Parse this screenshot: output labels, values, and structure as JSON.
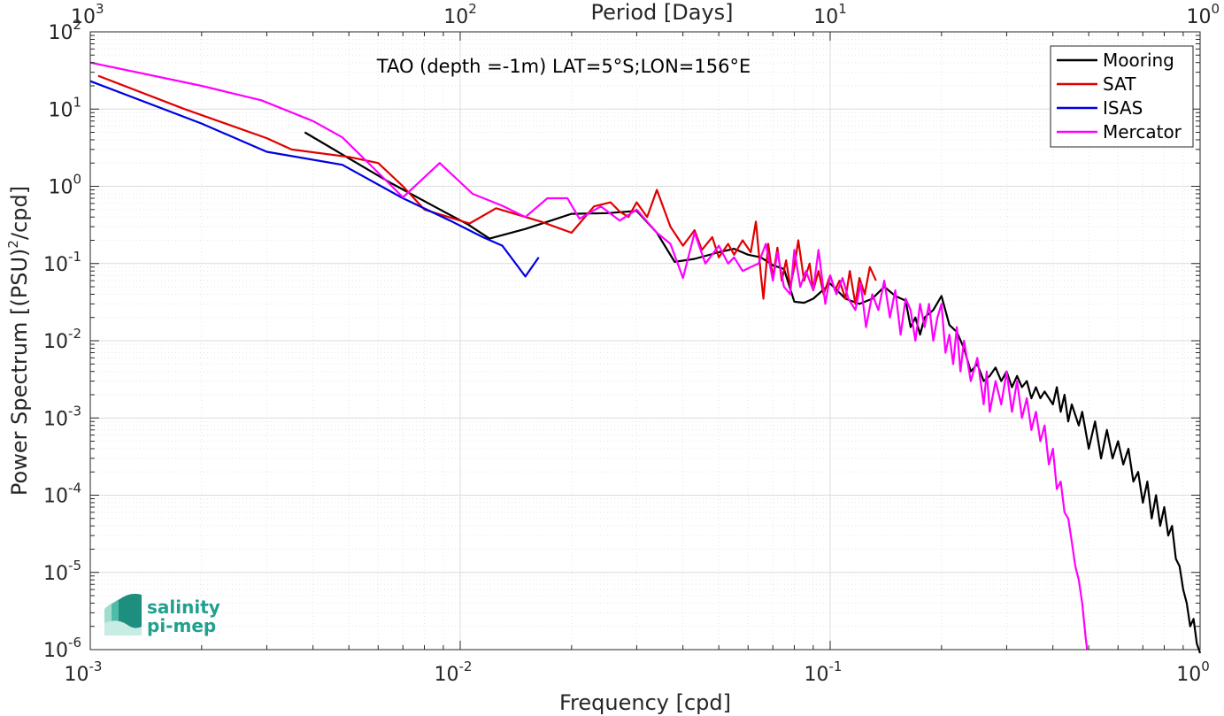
{
  "chart_data": {
    "type": "line",
    "title": "",
    "annotation": "TAO (depth =-1m) LAT=5°S;LON=156°E",
    "xlabel": "Frequency [cpd]",
    "ylabel_main": "Power Spectrum [(PSU)",
    "ylabel_sup": "2",
    "ylabel_tail": "/cpd]",
    "x2label": "Period [Days]",
    "xscale": "log",
    "yscale": "log",
    "xlim": [
      0.001,
      1
    ],
    "ylim": [
      1e-06,
      100
    ],
    "grid": true,
    "legend_position": "top-right",
    "x_ticks": [
      {
        "value": 0.001,
        "base": "10",
        "exp": "-3"
      },
      {
        "value": 0.01,
        "base": "10",
        "exp": "-2"
      },
      {
        "value": 0.1,
        "base": "10",
        "exp": "-1"
      },
      {
        "value": 1,
        "base": "10",
        "exp": "0"
      }
    ],
    "y_ticks": [
      {
        "value": 100,
        "base": "10",
        "exp": "2"
      },
      {
        "value": 10,
        "base": "10",
        "exp": "1"
      },
      {
        "value": 1,
        "base": "10",
        "exp": "0"
      },
      {
        "value": 0.1,
        "base": "10",
        "exp": "-1"
      },
      {
        "value": 0.01,
        "base": "10",
        "exp": "-2"
      },
      {
        "value": 0.001,
        "base": "10",
        "exp": "-3"
      },
      {
        "value": 0.0001,
        "base": "10",
        "exp": "-4"
      },
      {
        "value": 1e-05,
        "base": "10",
        "exp": "-5"
      },
      {
        "value": 1e-06,
        "base": "10",
        "exp": "-6"
      }
    ],
    "x2_ticks": [
      {
        "freq": 0.001,
        "base": "10",
        "exp": "3"
      },
      {
        "freq": 0.01,
        "base": "10",
        "exp": "2"
      },
      {
        "freq": 0.1,
        "base": "10",
        "exp": "1"
      },
      {
        "freq": 1,
        "base": "10",
        "exp": "0"
      }
    ],
    "series": [
      {
        "name": "Mooring",
        "color": "#000000",
        "points": [
          [
            0.0038,
            5.0
          ],
          [
            0.005,
            2.3
          ],
          [
            0.0065,
            1.1
          ],
          [
            0.0085,
            0.55
          ],
          [
            0.0105,
            0.32
          ],
          [
            0.012,
            0.21
          ],
          [
            0.015,
            0.28
          ],
          [
            0.02,
            0.44
          ],
          [
            0.025,
            0.45
          ],
          [
            0.03,
            0.48
          ],
          [
            0.034,
            0.25
          ],
          [
            0.038,
            0.105
          ],
          [
            0.043,
            0.115
          ],
          [
            0.05,
            0.14
          ],
          [
            0.055,
            0.155
          ],
          [
            0.06,
            0.13
          ],
          [
            0.065,
            0.12
          ],
          [
            0.07,
            0.095
          ],
          [
            0.075,
            0.085
          ],
          [
            0.08,
            0.032
          ],
          [
            0.085,
            0.031
          ],
          [
            0.09,
            0.035
          ],
          [
            0.1,
            0.055
          ],
          [
            0.11,
            0.035
          ],
          [
            0.12,
            0.03
          ],
          [
            0.13,
            0.035
          ],
          [
            0.14,
            0.05
          ],
          [
            0.15,
            0.038
          ],
          [
            0.16,
            0.033
          ],
          [
            0.165,
            0.015
          ],
          [
            0.17,
            0.02
          ],
          [
            0.175,
            0.012
          ],
          [
            0.18,
            0.02
          ],
          [
            0.19,
            0.025
          ],
          [
            0.2,
            0.038
          ],
          [
            0.21,
            0.016
          ],
          [
            0.22,
            0.013
          ],
          [
            0.23,
            0.008
          ],
          [
            0.24,
            0.004
          ],
          [
            0.25,
            0.005
          ],
          [
            0.26,
            0.003
          ],
          [
            0.27,
            0.0035
          ],
          [
            0.28,
            0.0045
          ],
          [
            0.29,
            0.003
          ],
          [
            0.3,
            0.004
          ],
          [
            0.31,
            0.0025
          ],
          [
            0.32,
            0.0035
          ],
          [
            0.33,
            0.0025
          ],
          [
            0.34,
            0.003
          ],
          [
            0.35,
            0.0018
          ],
          [
            0.36,
            0.0025
          ],
          [
            0.37,
            0.0018
          ],
          [
            0.38,
            0.0022
          ],
          [
            0.4,
            0.0015
          ],
          [
            0.41,
            0.0025
          ],
          [
            0.42,
            0.0012
          ],
          [
            0.43,
            0.002
          ],
          [
            0.44,
            0.0009
          ],
          [
            0.45,
            0.0015
          ],
          [
            0.47,
            0.0008
          ],
          [
            0.48,
            0.0012
          ],
          [
            0.5,
            0.0004
          ],
          [
            0.52,
            0.0009
          ],
          [
            0.54,
            0.0003
          ],
          [
            0.56,
            0.0007
          ],
          [
            0.58,
            0.0003
          ],
          [
            0.6,
            0.0005
          ],
          [
            0.62,
            0.00025
          ],
          [
            0.64,
            0.0004
          ],
          [
            0.66,
            0.00015
          ],
          [
            0.68,
            0.0002
          ],
          [
            0.7,
            8e-05
          ],
          [
            0.72,
            0.00015
          ],
          [
            0.74,
            5e-05
          ],
          [
            0.76,
            0.0001
          ],
          [
            0.78,
            4e-05
          ],
          [
            0.8,
            7e-05
          ],
          [
            0.82,
            3e-05
          ],
          [
            0.84,
            4e-05
          ],
          [
            0.86,
            1.5e-05
          ],
          [
            0.88,
            1.2e-05
          ],
          [
            0.9,
            6e-06
          ],
          [
            0.92,
            4e-06
          ],
          [
            0.94,
            2e-06
          ],
          [
            0.96,
            2.5e-06
          ],
          [
            0.98,
            1.2e-06
          ],
          [
            1.0,
            9e-07
          ]
        ]
      },
      {
        "name": "SAT",
        "color": "#e00000",
        "points": [
          [
            0.00105,
            27
          ],
          [
            0.0018,
            10
          ],
          [
            0.003,
            4.2
          ],
          [
            0.0035,
            3.0
          ],
          [
            0.005,
            2.4
          ],
          [
            0.006,
            2.0
          ],
          [
            0.007,
            1.0
          ],
          [
            0.008,
            0.5
          ],
          [
            0.0106,
            0.33
          ],
          [
            0.0125,
            0.52
          ],
          [
            0.0165,
            0.35
          ],
          [
            0.02,
            0.25
          ],
          [
            0.023,
            0.55
          ],
          [
            0.0255,
            0.62
          ],
          [
            0.027,
            0.47
          ],
          [
            0.0285,
            0.4
          ],
          [
            0.03,
            0.62
          ],
          [
            0.032,
            0.4
          ],
          [
            0.034,
            0.9
          ],
          [
            0.037,
            0.3
          ],
          [
            0.04,
            0.17
          ],
          [
            0.043,
            0.27
          ],
          [
            0.045,
            0.15
          ],
          [
            0.048,
            0.22
          ],
          [
            0.05,
            0.12
          ],
          [
            0.053,
            0.18
          ],
          [
            0.055,
            0.13
          ],
          [
            0.058,
            0.2
          ],
          [
            0.061,
            0.14
          ],
          [
            0.063,
            0.35
          ],
          [
            0.065,
            0.07
          ],
          [
            0.066,
            0.035
          ],
          [
            0.068,
            0.18
          ],
          [
            0.07,
            0.065
          ],
          [
            0.072,
            0.16
          ],
          [
            0.074,
            0.06
          ],
          [
            0.076,
            0.11
          ],
          [
            0.078,
            0.05
          ],
          [
            0.08,
            0.09
          ],
          [
            0.082,
            0.2
          ],
          [
            0.085,
            0.06
          ],
          [
            0.088,
            0.1
          ],
          [
            0.09,
            0.045
          ],
          [
            0.093,
            0.08
          ],
          [
            0.096,
            0.04
          ],
          [
            0.1,
            0.07
          ],
          [
            0.103,
            0.045
          ],
          [
            0.106,
            0.06
          ],
          [
            0.11,
            0.035
          ],
          [
            0.113,
            0.08
          ],
          [
            0.117,
            0.03
          ],
          [
            0.12,
            0.065
          ],
          [
            0.124,
            0.04
          ],
          [
            0.128,
            0.09
          ],
          [
            0.133,
            0.06
          ]
        ]
      },
      {
        "name": "ISAS",
        "color": "#0000e0",
        "points": [
          [
            0.001,
            23
          ],
          [
            0.002,
            6.5
          ],
          [
            0.003,
            2.8
          ],
          [
            0.0048,
            1.9
          ],
          [
            0.007,
            0.7
          ],
          [
            0.0095,
            0.35
          ],
          [
            0.0115,
            0.22
          ],
          [
            0.013,
            0.17
          ],
          [
            0.015,
            0.068
          ],
          [
            0.0163,
            0.12
          ]
        ]
      },
      {
        "name": "Mercator",
        "color": "#ff00ff",
        "points": [
          [
            0.001,
            40
          ],
          [
            0.002,
            20
          ],
          [
            0.0029,
            13
          ],
          [
            0.004,
            7.0
          ],
          [
            0.0048,
            4.3
          ],
          [
            0.006,
            1.5
          ],
          [
            0.007,
            0.72
          ],
          [
            0.0088,
            2.0
          ],
          [
            0.0108,
            0.8
          ],
          [
            0.013,
            0.56
          ],
          [
            0.015,
            0.4
          ],
          [
            0.0172,
            0.7
          ],
          [
            0.0195,
            0.7
          ],
          [
            0.021,
            0.38
          ],
          [
            0.024,
            0.55
          ],
          [
            0.027,
            0.36
          ],
          [
            0.03,
            0.5
          ],
          [
            0.034,
            0.25
          ],
          [
            0.037,
            0.18
          ],
          [
            0.04,
            0.065
          ],
          [
            0.043,
            0.25
          ],
          [
            0.046,
            0.1
          ],
          [
            0.05,
            0.17
          ],
          [
            0.053,
            0.1
          ],
          [
            0.055,
            0.12
          ],
          [
            0.058,
            0.08
          ],
          [
            0.061,
            0.09
          ],
          [
            0.064,
            0.1
          ],
          [
            0.067,
            0.18
          ],
          [
            0.07,
            0.06
          ],
          [
            0.072,
            0.14
          ],
          [
            0.075,
            0.05
          ],
          [
            0.078,
            0.04
          ],
          [
            0.08,
            0.15
          ],
          [
            0.083,
            0.05
          ],
          [
            0.086,
            0.08
          ],
          [
            0.09,
            0.045
          ],
          [
            0.093,
            0.15
          ],
          [
            0.097,
            0.03
          ],
          [
            0.1,
            0.07
          ],
          [
            0.104,
            0.04
          ],
          [
            0.108,
            0.065
          ],
          [
            0.112,
            0.035
          ],
          [
            0.117,
            0.025
          ],
          [
            0.121,
            0.055
          ],
          [
            0.125,
            0.015
          ],
          [
            0.13,
            0.04
          ],
          [
            0.135,
            0.025
          ],
          [
            0.14,
            0.06
          ],
          [
            0.145,
            0.02
          ],
          [
            0.15,
            0.045
          ],
          [
            0.155,
            0.012
          ],
          [
            0.16,
            0.035
          ],
          [
            0.165,
            0.025
          ],
          [
            0.17,
            0.01
          ],
          [
            0.175,
            0.03
          ],
          [
            0.18,
            0.015
          ],
          [
            0.185,
            0.03
          ],
          [
            0.19,
            0.01
          ],
          [
            0.195,
            0.02
          ],
          [
            0.2,
            0.03
          ],
          [
            0.205,
            0.007
          ],
          [
            0.21,
            0.012
          ],
          [
            0.215,
            0.005
          ],
          [
            0.22,
            0.015
          ],
          [
            0.225,
            0.004
          ],
          [
            0.23,
            0.01
          ],
          [
            0.24,
            0.003
          ],
          [
            0.25,
            0.006
          ],
          [
            0.26,
            0.0015
          ],
          [
            0.265,
            0.004
          ],
          [
            0.27,
            0.0012
          ],
          [
            0.28,
            0.003
          ],
          [
            0.29,
            0.0015
          ],
          [
            0.3,
            0.004
          ],
          [
            0.31,
            0.0012
          ],
          [
            0.32,
            0.003
          ],
          [
            0.33,
            0.001
          ],
          [
            0.34,
            0.0018
          ],
          [
            0.35,
            0.0007
          ],
          [
            0.36,
            0.0012
          ],
          [
            0.37,
            0.0005
          ],
          [
            0.38,
            0.0008
          ],
          [
            0.39,
            0.00025
          ],
          [
            0.4,
            0.0004
          ],
          [
            0.41,
            0.00012
          ],
          [
            0.42,
            0.00015
          ],
          [
            0.43,
            6e-05
          ],
          [
            0.44,
            5e-05
          ],
          [
            0.45,
            2.5e-05
          ],
          [
            0.46,
            1.2e-05
          ],
          [
            0.47,
            8e-06
          ],
          [
            0.48,
            4e-06
          ],
          [
            0.49,
            1.5e-06
          ],
          [
            0.495,
            1e-06
          ]
        ]
      }
    ]
  },
  "logo": {
    "line1": "salinity",
    "line2": "pi-mep"
  }
}
